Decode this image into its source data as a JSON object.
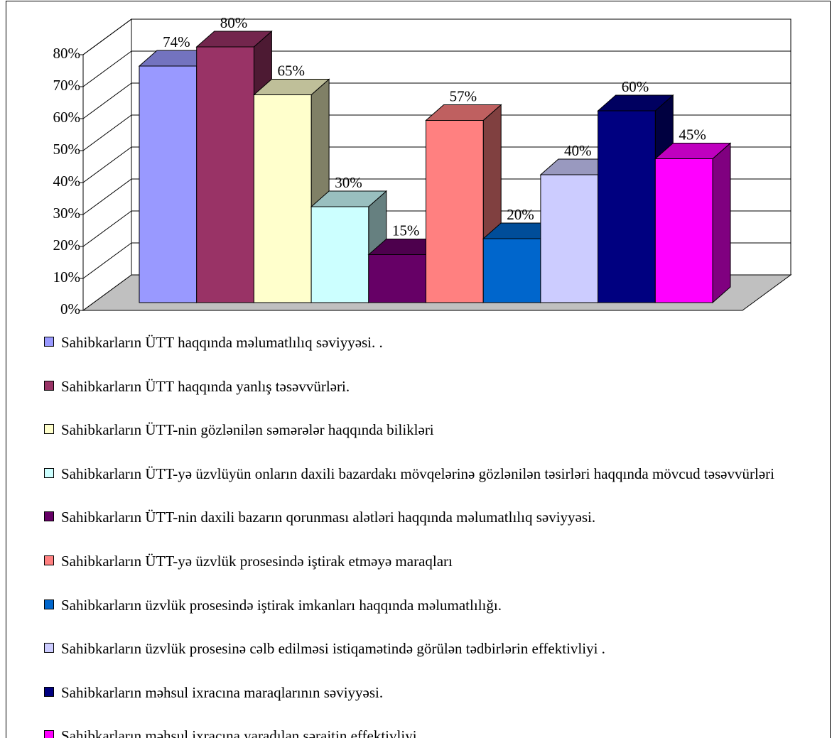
{
  "chart_data": {
    "type": "bar3d",
    "ylim": [
      0,
      80
    ],
    "yticks": [
      {
        "value": 0,
        "label": "0%"
      },
      {
        "value": 10,
        "label": "10%"
      },
      {
        "value": 20,
        "label": "20%"
      },
      {
        "value": 30,
        "label": "30%"
      },
      {
        "value": 40,
        "label": "40%"
      },
      {
        "value": 50,
        "label": "50%"
      },
      {
        "value": 60,
        "label": "60%"
      },
      {
        "value": 70,
        "label": "70%"
      },
      {
        "value": 80,
        "label": "80%"
      }
    ],
    "grid": true,
    "legend": "bottom",
    "series": [
      {
        "name": "Sahibkarların ÜTT haqqında məlumatlılıq səviyyəsi. .",
        "color": "#9999ff",
        "values": [
          74
        ],
        "value_labels": [
          "74%"
        ]
      },
      {
        "name": "Sahibkarların ÜTT haqqında yanlış təsəvvürləri.",
        "color": "#993366",
        "values": [
          80
        ],
        "value_labels": [
          "80%"
        ]
      },
      {
        "name": "Sahibkarların ÜTT-nin gözlənilən səmərələr haqqında bilikləri",
        "color": "#ffffcc",
        "values": [
          65
        ],
        "value_labels": [
          "65%"
        ]
      },
      {
        "name": "Sahibkarların ÜTT-yə üzvlüyün onların daxili bazardakı mövqelərinə gözlənilən təsirləri haqqında mövcud təsəvvürləri",
        "color": "#ccffff",
        "values": [
          30
        ],
        "value_labels": [
          "30%"
        ]
      },
      {
        "name": "Sahibkarların ÜTT-nin daxili bazarın qorunması alətləri haqqında məlumatlılıq səviyyəsi.",
        "color": "#660066",
        "values": [
          15
        ],
        "value_labels": [
          "15%"
        ]
      },
      {
        "name": "Sahibkarların ÜTT-yə üzvlük prosesində iştirak etməyə maraqları",
        "color": "#ff8080",
        "values": [
          57
        ],
        "value_labels": [
          "57%"
        ]
      },
      {
        "name": "Sahibkarların üzvlük prosesində iştirak imkanları haqqında məlumatlılığı.",
        "color": "#0066cc",
        "values": [
          20
        ],
        "value_labels": [
          "20%"
        ]
      },
      {
        "name": "Sahibkarların üzvlük prosesinə cəlb edilməsi istiqamətində görülən tədbirlərin effektivliyi .",
        "color": "#ccccff",
        "values": [
          40
        ],
        "value_labels": [
          "40%"
        ]
      },
      {
        "name": "Sahibkarların məhsul ixracına maraqlarının səviyyəsi.",
        "color": "#000080",
        "values": [
          60
        ],
        "value_labels": [
          "60%"
        ]
      },
      {
        "name": "Sahibkarların məhsul ixracına yaradılan şəraitin effektivliyi",
        "color": "#ff00ff",
        "values": [
          45
        ],
        "value_labels": [
          "45%"
        ]
      }
    ]
  }
}
